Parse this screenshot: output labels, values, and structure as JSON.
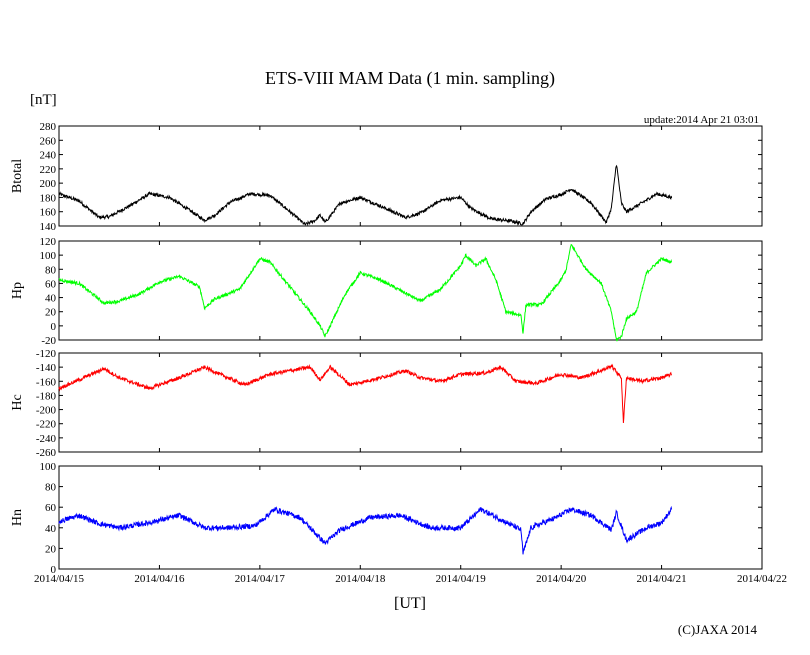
{
  "header": {
    "title": "ETS-VIII MAM Data (1 min. sampling)",
    "unit": "[nT]",
    "update": "update:2014 Apr 21 03:01"
  },
  "footer": {
    "xlabel": "[UT]",
    "copyright": "(C)JAXA 2014"
  },
  "chart_data": [
    {
      "type": "line",
      "name": "Btotal",
      "ylabel": "Btotal",
      "color": "#000000",
      "ylim": [
        140,
        280
      ],
      "yticks": [
        140,
        160,
        180,
        200,
        220,
        240,
        260,
        280
      ],
      "x": [
        0,
        0.2,
        0.4,
        0.5,
        0.7,
        0.9,
        1.1,
        1.3,
        1.45,
        1.55,
        1.7,
        1.9,
        2.1,
        2.3,
        2.45,
        2.55,
        2.6,
        2.65,
        2.8,
        3.0,
        3.2,
        3.45,
        3.6,
        3.8,
        4.0,
        4.1,
        4.3,
        4.5,
        4.62,
        4.7,
        4.85,
        5.0,
        5.1,
        5.3,
        5.45,
        5.5,
        5.55,
        5.6,
        5.65,
        5.8,
        5.95,
        6.1
      ],
      "values": [
        185,
        175,
        152,
        153,
        168,
        185,
        180,
        162,
        148,
        155,
        173,
        185,
        183,
        160,
        142,
        148,
        155,
        145,
        172,
        180,
        168,
        152,
        158,
        176,
        180,
        165,
        150,
        147,
        143,
        160,
        178,
        184,
        192,
        172,
        145,
        165,
        228,
        172,
        160,
        172,
        185,
        180
      ],
      "noise": 2.2
    },
    {
      "type": "line",
      "name": "Hp",
      "ylabel": "Hp",
      "color": "#00ff00",
      "ylim": [
        -20,
        120
      ],
      "yticks": [
        -20,
        0,
        20,
        40,
        60,
        80,
        100,
        120
      ],
      "x": [
        0,
        0.2,
        0.45,
        0.6,
        0.8,
        1.0,
        1.2,
        1.4,
        1.45,
        1.55,
        1.8,
        2.0,
        2.1,
        2.3,
        2.5,
        2.6,
        2.65,
        2.85,
        3.0,
        3.2,
        3.4,
        3.6,
        3.8,
        4.0,
        4.05,
        4.15,
        4.25,
        4.35,
        4.45,
        4.6,
        4.62,
        4.65,
        4.8,
        5.0,
        5.05,
        5.1,
        5.25,
        5.4,
        5.5,
        5.55,
        5.6,
        5.65,
        5.75,
        5.85,
        6.0,
        6.1
      ],
      "values": [
        65,
        60,
        32,
        35,
        45,
        62,
        70,
        55,
        25,
        38,
        52,
        95,
        90,
        55,
        20,
        0,
        -15,
        45,
        75,
        65,
        50,
        35,
        52,
        85,
        100,
        85,
        95,
        65,
        20,
        15,
        -10,
        30,
        30,
        65,
        80,
        115,
        80,
        60,
        20,
        -20,
        -15,
        10,
        20,
        75,
        95,
        90
      ],
      "noise": 2.2
    },
    {
      "type": "line",
      "name": "Hc",
      "ylabel": "Hc",
      "color": "#ff0000",
      "ylim": [
        -260,
        -120
      ],
      "yticks": [
        -260,
        -240,
        -220,
        -200,
        -180,
        -160,
        -140,
        -120
      ],
      "x": [
        0,
        0.2,
        0.45,
        0.6,
        0.9,
        1.2,
        1.45,
        1.6,
        1.85,
        2.1,
        2.5,
        2.6,
        2.7,
        2.9,
        3.2,
        3.45,
        3.6,
        3.8,
        4.0,
        4.25,
        4.4,
        4.55,
        4.75,
        5.0,
        5.2,
        5.45,
        5.5,
        5.6,
        5.62,
        5.65,
        5.8,
        6.0,
        6.1
      ],
      "values": [
        -170,
        -158,
        -142,
        -155,
        -170,
        -155,
        -140,
        -150,
        -165,
        -150,
        -140,
        -158,
        -140,
        -165,
        -155,
        -145,
        -155,
        -160,
        -150,
        -148,
        -140,
        -160,
        -163,
        -150,
        -155,
        -142,
        -138,
        -155,
        -220,
        -155,
        -160,
        -155,
        -150
      ],
      "noise": 2.5
    },
    {
      "type": "line",
      "name": "Hn",
      "ylabel": "Hn",
      "color": "#0000ff",
      "ylim": [
        0,
        100
      ],
      "yticks": [
        0,
        20,
        40,
        60,
        80,
        100
      ],
      "x": [
        0,
        0.2,
        0.4,
        0.6,
        0.9,
        1.2,
        1.45,
        1.7,
        1.95,
        2.15,
        2.4,
        2.6,
        2.65,
        2.8,
        3.1,
        3.4,
        3.7,
        4.0,
        4.2,
        4.4,
        4.6,
        4.62,
        4.7,
        4.95,
        5.1,
        5.3,
        5.5,
        5.55,
        5.65,
        5.85,
        6.0,
        6.1
      ],
      "values": [
        46,
        52,
        44,
        40,
        45,
        52,
        40,
        40,
        42,
        58,
        50,
        30,
        25,
        38,
        50,
        52,
        40,
        40,
        58,
        48,
        38,
        15,
        40,
        50,
        58,
        52,
        38,
        55,
        28,
        40,
        45,
        58
      ],
      "noise": 2.5
    }
  ],
  "xaxis": {
    "ticks": [
      "2014/04/15",
      "2014/04/16",
      "2014/04/17",
      "2014/04/18",
      "2014/04/19",
      "2014/04/20",
      "2014/04/21",
      "2014/04/22"
    ]
  }
}
